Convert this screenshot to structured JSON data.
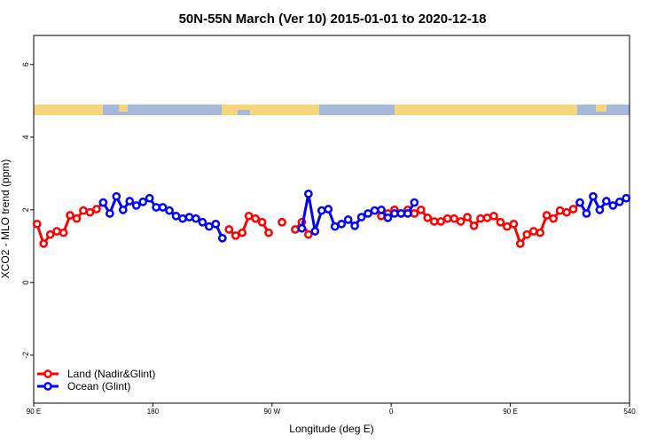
{
  "chart_data": {
    "type": "line",
    "title": "50N-55N March (Ver 10)   2015-01-01 to 2020-12-18",
    "x_label": "Longitude (deg E)",
    "y_label": "XCO2 - MLO trend (ppm)",
    "xlim": [
      90,
      540
    ],
    "ylim": [
      -3.32,
      6.8
    ],
    "xticks": [
      {
        "value": 90,
        "label": "90 E"
      },
      180,
      {
        "value": 270,
        "label": "90 W"
      },
      {
        "value": 360,
        "label": "0"
      },
      {
        "value": 450,
        "label": "90 E"
      },
      540
    ],
    "yticks": [
      -2,
      0,
      2,
      4,
      6
    ],
    "legend": "bottom-left",
    "x": [
      92.5,
      97.5,
      102.5,
      107.5,
      112.5,
      117.5,
      122.5,
      127.5,
      132.5,
      137.5,
      142.5,
      147.5,
      152.5,
      157.5,
      162.5,
      167.5,
      172.5,
      177.5,
      182.5,
      187.5,
      192.5,
      197.5,
      202.5,
      207.5,
      212.5,
      217.5,
      222.5,
      227.5,
      232.5,
      237.5,
      242.5,
      247.5,
      252.5,
      257.5,
      262.5,
      267.5,
      272.5,
      277.5,
      282.5,
      287.5,
      292.5,
      297.5,
      302.5,
      307.5,
      312.5,
      317.5,
      322.5,
      327.5,
      332.5,
      337.5,
      342.5,
      347.5,
      352.5,
      357.5,
      362.5,
      367.5,
      372.5,
      377.5,
      382.5,
      387.5,
      392.5,
      397.5,
      402.5,
      407.5,
      412.5,
      417.5,
      422.5,
      427.5,
      432.5,
      437.5,
      442.5,
      447.5,
      452.5,
      457.5,
      462.5,
      467.5,
      472.5,
      477.5,
      482.5,
      487.5,
      492.5,
      497.5,
      502.5,
      507.5,
      512.5,
      517.5,
      522.5,
      527.5,
      532.5,
      537.5
    ],
    "series": [
      {
        "name": "Land (Nadir&Glint)",
        "color": "#ff0000",
        "values": [
          1.61,
          1.07,
          1.32,
          1.41,
          1.37,
          1.85,
          1.76,
          1.98,
          1.93,
          2.02,
          2.2,
          null,
          null,
          null,
          null,
          null,
          null,
          null,
          null,
          null,
          null,
          null,
          null,
          null,
          null,
          null,
          null,
          null,
          null,
          1.46,
          1.29,
          1.37,
          1.83,
          1.76,
          1.66,
          1.37,
          null,
          1.66,
          null,
          1.46,
          1.66,
          1.32,
          null,
          null,
          null,
          null,
          null,
          null,
          null,
          null,
          null,
          null,
          1.83,
          1.9,
          2.0,
          1.9,
          2.0,
          1.9,
          2.0,
          1.78,
          1.68,
          1.68,
          1.76,
          1.76,
          1.68,
          1.8,
          1.56,
          1.76,
          1.78,
          1.83,
          1.66,
          1.54,
          1.61,
          1.07,
          1.32,
          1.41,
          1.37,
          1.85,
          1.76,
          1.98,
          1.93,
          2.02,
          2.2,
          null,
          null,
          null,
          null,
          null,
          null,
          null
        ]
      },
      {
        "name": "Ocean (Glint)",
        "color": "#0000ff",
        "values": [
          null,
          null,
          null,
          null,
          null,
          null,
          null,
          null,
          null,
          null,
          2.2,
          1.9,
          2.37,
          2.0,
          2.24,
          2.12,
          2.22,
          2.32,
          2.07,
          2.07,
          1.98,
          1.83,
          1.76,
          1.8,
          1.76,
          1.66,
          1.54,
          1.61,
          1.22,
          null,
          null,
          null,
          null,
          null,
          null,
          null,
          null,
          null,
          null,
          null,
          1.49,
          2.44,
          1.41,
          1.98,
          2.02,
          1.54,
          1.61,
          1.73,
          1.56,
          1.8,
          1.9,
          1.98,
          2.0,
          1.78,
          1.9,
          1.9,
          1.9,
          2.2,
          null,
          null,
          null,
          null,
          null,
          null,
          null,
          null,
          null,
          null,
          null,
          null,
          null,
          null,
          null,
          null,
          null,
          null,
          null,
          null,
          null,
          null,
          null,
          null,
          2.2,
          1.9,
          2.37,
          2.0,
          2.24,
          2.12,
          2.22,
          2.32
        ]
      }
    ]
  }
}
